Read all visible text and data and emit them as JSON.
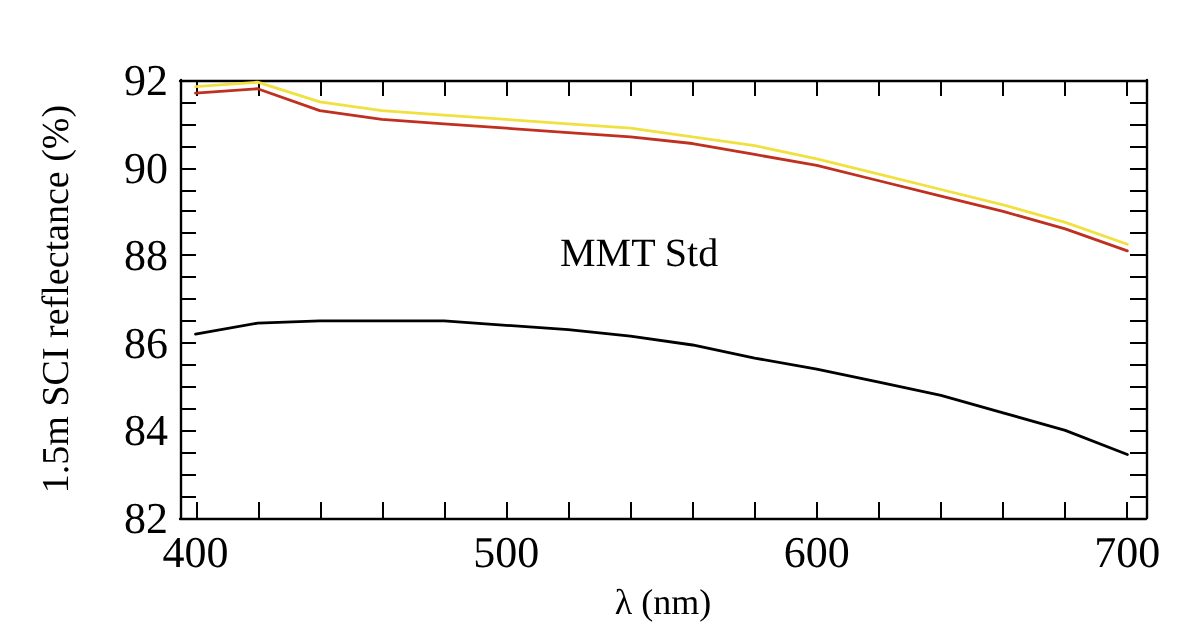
{
  "chart_data": {
    "type": "line",
    "xlabel": "λ (nm)",
    "ylabel": "1.5m SCI reflectance (%)",
    "annotations": [
      "MMT Std"
    ],
    "xlim": [
      395,
      706
    ],
    "ylim": [
      82,
      92
    ],
    "xticks": [
      400,
      {
        "value": 420,
        "label": null
      },
      {
        "value": 440,
        "label": null
      },
      {
        "value": 460,
        "label": null
      },
      {
        "value": 480,
        "label": null
      },
      500,
      {
        "value": 520,
        "label": null
      },
      {
        "value": 540,
        "label": null
      },
      {
        "value": 560,
        "label": null
      },
      {
        "value": 580,
        "label": null
      },
      600,
      {
        "value": 620,
        "label": null
      },
      {
        "value": 640,
        "label": null
      },
      {
        "value": 660,
        "label": null
      },
      {
        "value": 680,
        "label": null
      },
      700
    ],
    "yticks": [
      82,
      {
        "value": 82.5,
        "label": null
      },
      {
        "value": 83,
        "label": null
      },
      {
        "value": 83.5,
        "label": null
      },
      84,
      {
        "value": 84.5,
        "label": null
      },
      {
        "value": 85,
        "label": null
      },
      {
        "value": 85.5,
        "label": null
      },
      86,
      {
        "value": 86.5,
        "label": null
      },
      {
        "value": 87,
        "label": null
      },
      {
        "value": 87.5,
        "label": null
      },
      88,
      {
        "value": 88.5,
        "label": null
      },
      {
        "value": 89,
        "label": null
      },
      {
        "value": 89.5,
        "label": null
      },
      90,
      {
        "value": 90.5,
        "label": null
      },
      {
        "value": 91,
        "label": null
      },
      {
        "value": 91.5,
        "label": null
      },
      92
    ],
    "marker": "none",
    "line_style": "solid",
    "x": [
      400,
      420,
      440,
      460,
      480,
      500,
      520,
      540,
      560,
      580,
      600,
      620,
      640,
      660,
      680,
      700
    ],
    "series": [
      {
        "color": "#f0e040",
        "values": [
          91.85,
          91.95,
          91.5,
          91.3,
          91.2,
          91.1,
          91.0,
          90.9,
          90.7,
          90.5,
          90.2,
          89.85,
          89.5,
          89.15,
          88.75,
          88.25
        ]
      },
      {
        "color": "#c03020",
        "values": [
          91.7,
          91.8,
          91.3,
          91.1,
          91.0,
          90.9,
          90.8,
          90.7,
          90.55,
          90.3,
          90.05,
          89.7,
          89.35,
          89.0,
          88.6,
          88.1
        ]
      },
      {
        "color": "#000000",
        "values": [
          86.2,
          86.45,
          86.5,
          86.5,
          86.5,
          86.4,
          86.3,
          86.15,
          85.95,
          85.65,
          85.4,
          85.1,
          84.8,
          84.4,
          84.0,
          83.45
        ]
      }
    ]
  }
}
